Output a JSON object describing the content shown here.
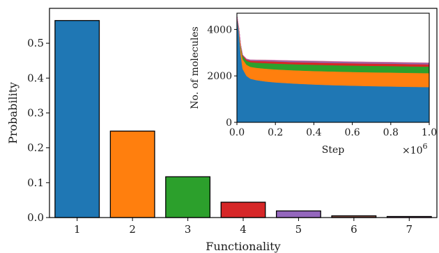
{
  "chart_data": [
    {
      "type": "bar",
      "title": "",
      "xlabel": "Functionality",
      "ylabel": "Probability",
      "categories": [
        "1",
        "2",
        "3",
        "4",
        "5",
        "6",
        "7"
      ],
      "values": [
        0.565,
        0.248,
        0.117,
        0.044,
        0.019,
        0.005,
        0.003
      ],
      "colors": [
        "#1f77b4",
        "#ff7f0e",
        "#2ca02c",
        "#d62728",
        "#9467bd",
        "#8c564b",
        "#e377c2"
      ],
      "ylim": [
        0,
        0.6
      ],
      "yticks": [
        "0.0",
        "0.1",
        "0.2",
        "0.3",
        "0.4",
        "0.5"
      ],
      "grid": false
    },
    {
      "type": "area",
      "title": "",
      "xlabel": "Step",
      "ylabel": "No. of molecules",
      "x_multiplier_label": "×10^6",
      "xlim": [
        0,
        1.0
      ],
      "ylim": [
        0,
        4700
      ],
      "xticks": [
        "0.0",
        "0.2",
        "0.4",
        "0.6",
        "0.8",
        "1.0"
      ],
      "yticks": [
        "0",
        "2000",
        "4000"
      ],
      "x": [
        0,
        0.01,
        0.02,
        0.03,
        0.05,
        0.07,
        0.1,
        0.15,
        0.2,
        0.3,
        0.4,
        0.5,
        0.6,
        0.7,
        0.8,
        0.9,
        1.0
      ],
      "series": [
        {
          "color": "#1f77b4",
          "values": [
            4600,
            3900,
            2900,
            2300,
            2000,
            1880,
            1820,
            1760,
            1720,
            1670,
            1630,
            1600,
            1580,
            1560,
            1545,
            1530,
            1520
          ]
        },
        {
          "color": "#ff7f0e",
          "values": [
            0,
            150,
            330,
            420,
            480,
            510,
            530,
            550,
            560,
            570,
            580,
            590,
            590,
            595,
            600,
            600,
            600
          ]
        },
        {
          "color": "#2ca02c",
          "values": [
            0,
            25,
            80,
            130,
            170,
            200,
            220,
            240,
            250,
            260,
            270,
            270,
            275,
            278,
            280,
            280,
            280
          ]
        },
        {
          "color": "#d62728",
          "values": [
            0,
            5,
            20,
            40,
            55,
            65,
            75,
            85,
            90,
            95,
            100,
            100,
            100,
            100,
            100,
            100,
            100
          ]
        },
        {
          "color": "#9467bd",
          "values": [
            0,
            2,
            8,
            15,
            22,
            28,
            32,
            36,
            40,
            42,
            44,
            45,
            45,
            45,
            45,
            45,
            45
          ]
        },
        {
          "color": "#8c564b",
          "values": [
            0,
            0,
            2,
            4,
            6,
            8,
            10,
            12,
            13,
            14,
            15,
            15,
            15,
            15,
            15,
            15,
            15
          ]
        },
        {
          "color": "#e377c2",
          "values": [
            0,
            0,
            0,
            1,
            2,
            3,
            4,
            5,
            6,
            7,
            8,
            8,
            8,
            8,
            8,
            8,
            8
          ]
        }
      ],
      "grid": false
    }
  ]
}
